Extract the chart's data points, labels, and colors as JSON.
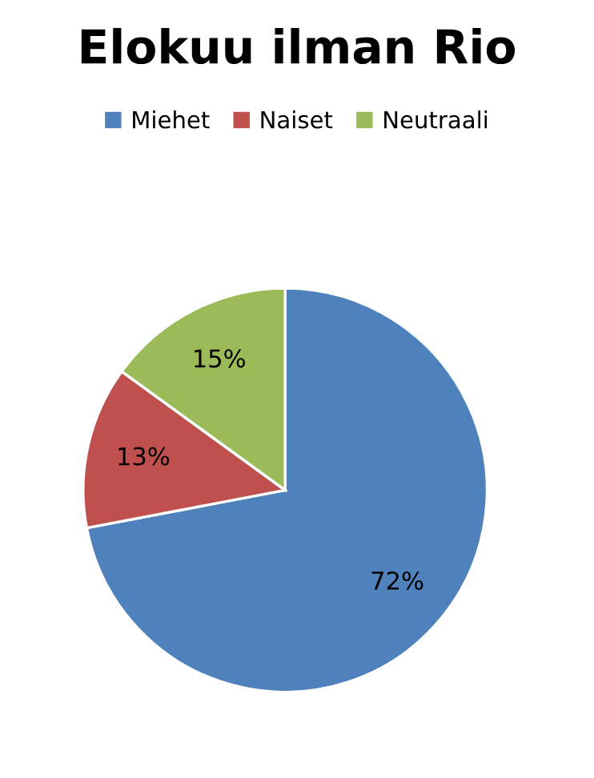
{
  "chart_data": {
    "type": "pie",
    "title": "Elokuu ilman Rio",
    "categories": [
      "Miehet",
      "Naiset",
      "Neutraali"
    ],
    "values": [
      72,
      13,
      15
    ],
    "value_labels": [
      "72%",
      "13%",
      "15%"
    ],
    "colors": [
      "#4f81bd",
      "#c0504d",
      "#9bbb59"
    ],
    "legend": "top"
  }
}
